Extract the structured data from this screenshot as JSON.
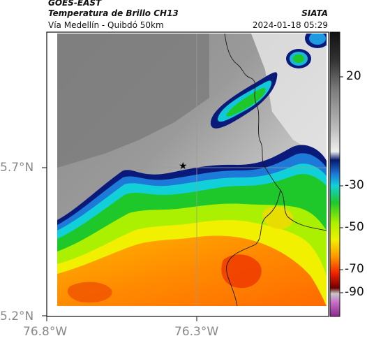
{
  "header": {
    "line1": "GOES-EAST",
    "line2": "Temperatura de Brillo CH13",
    "line3": "Vía Medellín - Quibdó 50km",
    "source": "SIATA",
    "timestamp": "2024-01-18 05:29"
  },
  "axes": {
    "y_ticks": [
      "5.7°N",
      "5.2°N"
    ],
    "x_ticks": [
      "76.8°W",
      "76.3°W"
    ]
  },
  "colorbar": {
    "ticks": [
      "20",
      "-30",
      "-50",
      "-70",
      "-90"
    ]
  },
  "marker": {
    "symbol": "★"
  }
}
